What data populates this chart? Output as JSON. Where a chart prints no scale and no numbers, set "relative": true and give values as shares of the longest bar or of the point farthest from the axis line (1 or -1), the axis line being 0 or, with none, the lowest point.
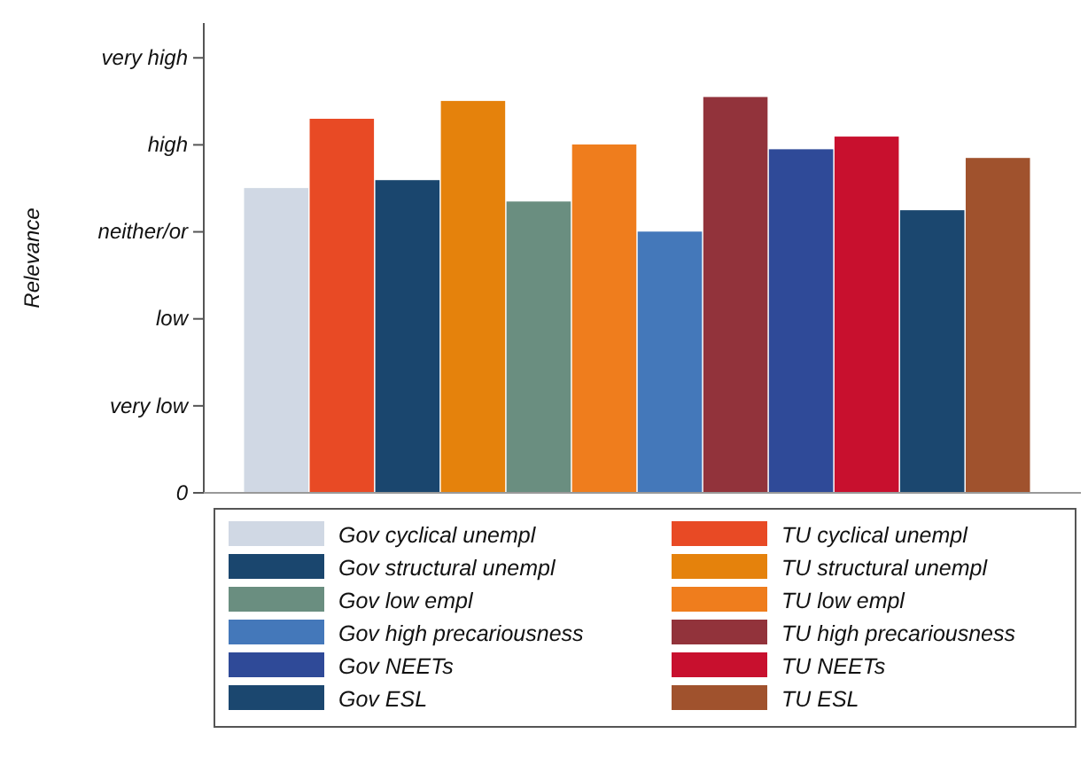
{
  "chart_data": {
    "type": "bar",
    "ylabel": "Relevance",
    "categories": [
      null
    ],
    "relative": true,
    "annotations": [
      "0",
      "very low",
      "low",
      "neither/or",
      "high",
      "very high"
    ],
    "legend": "bottom",
    "series": [
      {
        "name": "Gov cyclical unempl",
        "color": "#d0d8e4",
        "values": [
          0.77
        ]
      },
      {
        "name": "TU cyclical unempl",
        "color": "#e84a25",
        "values": [
          0.945
        ]
      },
      {
        "name": "Gov structural unempl",
        "color": "#1a466e",
        "values": [
          0.79
        ]
      },
      {
        "name": "TU structural unempl",
        "color": "#e5820c",
        "values": [
          0.99
        ]
      },
      {
        "name": "Gov low empl",
        "color": "#6a8e80",
        "values": [
          0.736
        ]
      },
      {
        "name": "TU low empl",
        "color": "#ef7d1d",
        "values": [
          0.88
        ]
      },
      {
        "name": "Gov high precariousness",
        "color": "#4478ba",
        "values": [
          0.66
        ]
      },
      {
        "name": "TU high precariousness",
        "color": "#92333b",
        "values": [
          1
        ]
      },
      {
        "name": "Gov NEETs",
        "color": "#2f4a98",
        "values": [
          0.868
        ]
      },
      {
        "name": "TU NEETs",
        "color": "#c8102e",
        "values": [
          0.9
        ]
      },
      {
        "name": "Gov ESL",
        "color": "#1b476f",
        "values": [
          0.714
        ]
      },
      {
        "name": "TU ESL",
        "color": "#a0522d",
        "values": [
          0.846
        ]
      }
    ]
  }
}
